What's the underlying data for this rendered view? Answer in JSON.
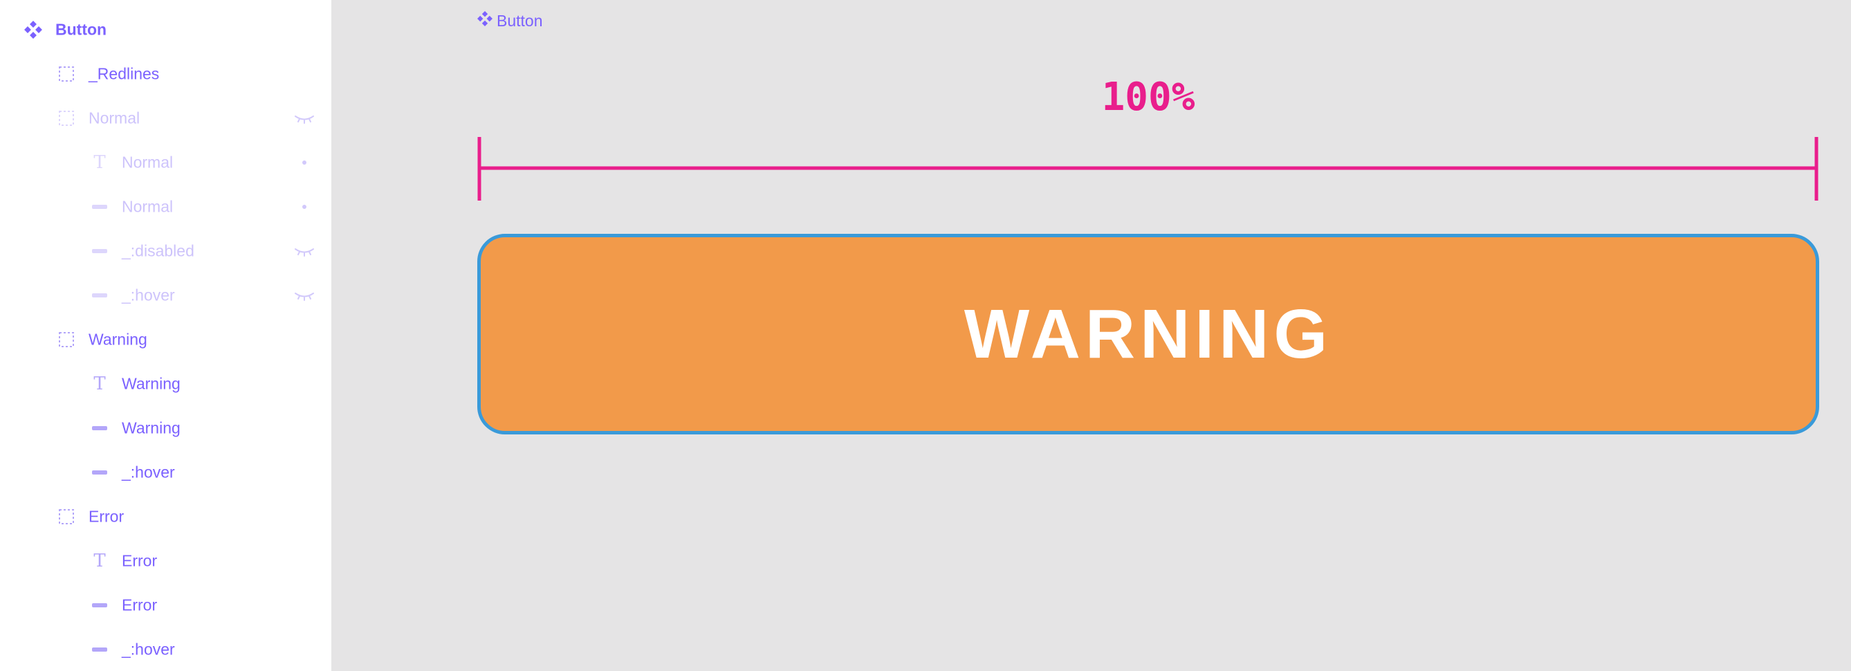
{
  "layers": {
    "component": "Button",
    "items": [
      {
        "name": "_Redlines",
        "icon": "frame-icon",
        "indent": 1,
        "state": "visible",
        "trailing": "none"
      },
      {
        "name": "Normal",
        "icon": "frame-icon",
        "indent": 1,
        "state": "hidden",
        "trailing": "eye-closed-icon"
      },
      {
        "name": "Normal",
        "icon": "text-icon",
        "indent": 2,
        "state": "hidden",
        "trailing": "dot"
      },
      {
        "name": "Normal",
        "icon": "rectangle-icon",
        "indent": 2,
        "state": "hidden",
        "trailing": "dot"
      },
      {
        "name": "_:disabled",
        "icon": "rectangle-icon",
        "indent": 2,
        "state": "hidden",
        "trailing": "eye-closed-icon"
      },
      {
        "name": "_:hover",
        "icon": "rectangle-icon",
        "indent": 2,
        "state": "hidden",
        "trailing": "eye-closed-icon"
      },
      {
        "name": "Warning",
        "icon": "frame-icon",
        "indent": 1,
        "state": "visible",
        "trailing": "none"
      },
      {
        "name": "Warning",
        "icon": "text-icon",
        "indent": 2,
        "state": "visible",
        "trailing": "none"
      },
      {
        "name": "Warning",
        "icon": "rectangle-icon",
        "indent": 2,
        "state": "visible",
        "trailing": "none"
      },
      {
        "name": "_:hover",
        "icon": "rectangle-icon",
        "indent": 2,
        "state": "visible",
        "trailing": "none"
      },
      {
        "name": "Error",
        "icon": "frame-icon",
        "indent": 1,
        "state": "visible",
        "trailing": "none"
      },
      {
        "name": "Error",
        "icon": "text-icon",
        "indent": 2,
        "state": "visible",
        "trailing": "none"
      },
      {
        "name": "Error",
        "icon": "rectangle-icon",
        "indent": 2,
        "state": "visible",
        "trailing": "none"
      },
      {
        "name": "_:hover",
        "icon": "rectangle-icon",
        "indent": 2,
        "state": "visible",
        "trailing": "none"
      }
    ]
  },
  "canvas": {
    "frame_label": "Button",
    "redline_value": "100%",
    "button_text": "WARNING"
  },
  "colors": {
    "accent": "#7b61ff",
    "redline": "#e91e8c",
    "button_fill": "#f29a4a",
    "selection_border": "#3a9ad9",
    "canvas_bg": "#e5e4e5"
  }
}
